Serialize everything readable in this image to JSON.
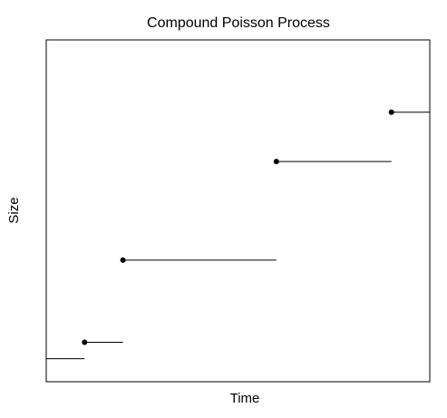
{
  "chart_data": {
    "type": "line",
    "title": "Compound Poisson Process",
    "xlabel": "Time",
    "ylabel": "Size",
    "step": true,
    "show_ticks": false,
    "show_tick_labels": false,
    "grid": false,
    "legend": "none",
    "line_color": "#000000",
    "point_color": "#000000",
    "xlim": [
      0,
      10
    ],
    "ylim": [
      -0.2,
      10.2
    ],
    "jumps": [
      {
        "x": 1.0,
        "y": 1.0
      },
      {
        "x": 2.0,
        "y": 3.5
      },
      {
        "x": 6.0,
        "y": 6.5
      },
      {
        "x": 9.0,
        "y": 8.0
      }
    ],
    "segments": [
      {
        "x_start": 0.0,
        "x_end": 1.0,
        "y": 0.5
      },
      {
        "x_start": 1.0,
        "x_end": 2.0,
        "y": 1.0
      },
      {
        "x_start": 2.0,
        "x_end": 6.0,
        "y": 3.5
      },
      {
        "x_start": 6.0,
        "x_end": 9.0,
        "y": 6.5
      },
      {
        "x_start": 9.0,
        "x_end": 10.0,
        "y": 8.0
      }
    ]
  }
}
